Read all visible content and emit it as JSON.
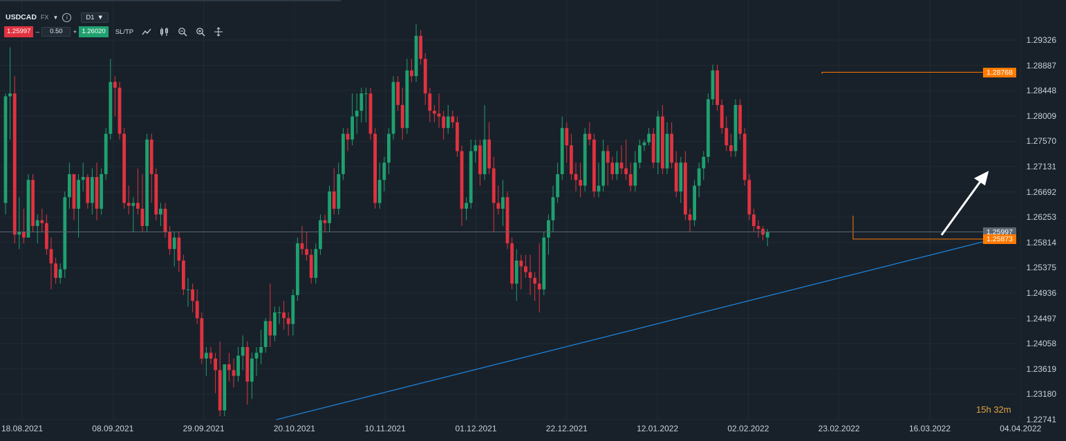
{
  "toolbar": {
    "symbol": "USDCAD",
    "market": "FX",
    "timeframe": "D1",
    "sell_price": "1.25997",
    "quantity": "0.50",
    "buy_price": "1.26020",
    "sltp_label": "SL/TP",
    "minus": "–",
    "plus": "+"
  },
  "price_axis": [
    "1.29326",
    "1.28887",
    "1.28448",
    "1.28009",
    "1.27570",
    "1.27131",
    "1.26692",
    "1.26253",
    "1.25814",
    "1.25375",
    "1.24936",
    "1.24497",
    "1.24058",
    "1.23619",
    "1.23180",
    "1.22741"
  ],
  "date_axis": [
    "18.08.2021",
    "08.09.2021",
    "29.09.2021",
    "20.10.2021",
    "10.11.2021",
    "01.12.2021",
    "22.12.2021",
    "12.01.2022",
    "02.02.2022",
    "23.02.2022",
    "16.03.2022",
    "04.04.2022"
  ],
  "current_price_label": "1.25997",
  "resistance_label": "1.28768",
  "support_label": "1.25873",
  "countdown": {
    "hours": "15h",
    "minutes": "32m"
  },
  "colors": {
    "up": "#1fa06f",
    "down": "#e0323f",
    "trendline": "#1e88e5",
    "level": "#ff7a00",
    "arrow": "#ffffff"
  },
  "chart_data": {
    "type": "candlestick",
    "symbol": "USDCAD",
    "timeframe": "D1",
    "ylim": [
      1.22741,
      1.29326
    ],
    "current_price": 1.25997,
    "levels": [
      1.28768,
      1.25873
    ],
    "trendline": [
      {
        "date": "20.10.2021",
        "price": 1.2274
      },
      {
        "date": "25.03.2022",
        "price": 1.2585
      }
    ],
    "candles": [
      [
        1.265,
        1.284,
        1.263,
        1.2835
      ],
      [
        1.2835,
        1.292,
        1.276,
        1.284
      ],
      [
        1.284,
        1.287,
        1.258,
        1.2595
      ],
      [
        1.2595,
        1.266,
        1.257,
        1.26
      ],
      [
        1.26,
        1.264,
        1.258,
        1.259
      ],
      [
        1.259,
        1.27,
        1.259,
        1.269
      ],
      [
        1.269,
        1.27,
        1.26,
        1.261
      ],
      [
        1.261,
        1.263,
        1.258,
        1.262
      ],
      [
        1.262,
        1.264,
        1.26,
        1.2615
      ],
      [
        1.2615,
        1.263,
        1.256,
        1.257
      ],
      [
        1.257,
        1.259,
        1.25,
        1.2545
      ],
      [
        1.2545,
        1.2555,
        1.251,
        1.252
      ],
      [
        1.252,
        1.2545,
        1.251,
        1.2535
      ],
      [
        1.2535,
        1.267,
        1.252,
        1.266
      ],
      [
        1.266,
        1.272,
        1.264,
        1.27
      ],
      [
        1.27,
        1.27,
        1.262,
        1.264
      ],
      [
        1.264,
        1.27,
        1.259,
        1.269
      ],
      [
        1.269,
        1.272,
        1.267,
        1.2695
      ],
      [
        1.2695,
        1.27,
        1.264,
        1.265
      ],
      [
        1.265,
        1.271,
        1.263,
        1.2695
      ],
      [
        1.2695,
        1.272,
        1.262,
        1.264
      ],
      [
        1.264,
        1.271,
        1.263,
        1.27
      ],
      [
        1.27,
        1.278,
        1.269,
        1.277
      ],
      [
        1.277,
        1.29,
        1.276,
        1.286
      ],
      [
        1.286,
        1.287,
        1.28,
        1.285
      ],
      [
        1.285,
        1.286,
        1.276,
        1.277
      ],
      [
        1.277,
        1.278,
        1.264,
        1.265
      ],
      [
        1.265,
        1.268,
        1.263,
        1.2645
      ],
      [
        1.2645,
        1.266,
        1.26,
        1.265
      ],
      [
        1.265,
        1.271,
        1.263,
        1.264
      ],
      [
        1.264,
        1.27,
        1.26,
        1.261
      ],
      [
        1.261,
        1.277,
        1.26,
        1.276
      ],
      [
        1.276,
        1.277,
        1.265,
        1.27
      ],
      [
        1.27,
        1.271,
        1.262,
        1.263
      ],
      [
        1.263,
        1.265,
        1.261,
        1.264
      ],
      [
        1.264,
        1.265,
        1.259,
        1.26
      ],
      [
        1.26,
        1.261,
        1.256,
        1.257
      ],
      [
        1.257,
        1.26,
        1.254,
        1.259
      ],
      [
        1.259,
        1.26,
        1.253,
        1.255
      ],
      [
        1.255,
        1.256,
        1.249,
        1.25
      ],
      [
        1.25,
        1.252,
        1.247,
        1.25
      ],
      [
        1.25,
        1.251,
        1.246,
        1.248
      ],
      [
        1.248,
        1.25,
        1.244,
        1.245
      ],
      [
        1.245,
        1.246,
        1.237,
        1.238
      ],
      [
        1.238,
        1.24,
        1.235,
        1.239
      ],
      [
        1.239,
        1.24,
        1.237,
        1.238
      ],
      [
        1.238,
        1.239,
        1.232,
        1.236
      ],
      [
        1.236,
        1.241,
        1.228,
        1.229
      ],
      [
        1.229,
        1.237,
        1.228,
        1.237
      ],
      [
        1.237,
        1.239,
        1.234,
        1.236
      ],
      [
        1.236,
        1.238,
        1.233,
        1.235
      ],
      [
        1.235,
        1.24,
        1.234,
        1.2385
      ],
      [
        1.2385,
        1.242,
        1.236,
        1.24
      ],
      [
        1.24,
        1.241,
        1.23,
        1.234
      ],
      [
        1.234,
        1.239,
        1.231,
        1.238
      ],
      [
        1.238,
        1.24,
        1.235,
        1.239
      ],
      [
        1.239,
        1.243,
        1.237,
        1.24
      ],
      [
        1.24,
        1.245,
        1.239,
        1.2445
      ],
      [
        1.2445,
        1.251,
        1.24,
        1.242
      ],
      [
        1.242,
        1.247,
        1.241,
        1.246
      ],
      [
        1.246,
        1.247,
        1.244,
        1.246
      ],
      [
        1.246,
        1.248,
        1.243,
        1.245
      ],
      [
        1.245,
        1.246,
        1.242,
        1.244
      ],
      [
        1.244,
        1.25,
        1.242,
        1.249
      ],
      [
        1.249,
        1.259,
        1.248,
        1.258
      ],
      [
        1.258,
        1.261,
        1.256,
        1.257
      ],
      [
        1.257,
        1.26,
        1.255,
        1.256
      ],
      [
        1.256,
        1.257,
        1.251,
        1.252
      ],
      [
        1.252,
        1.258,
        1.251,
        1.257
      ],
      [
        1.257,
        1.263,
        1.256,
        1.262
      ],
      [
        1.262,
        1.263,
        1.26,
        1.2615
      ],
      [
        1.2615,
        1.268,
        1.26,
        1.267
      ],
      [
        1.267,
        1.271,
        1.263,
        1.264
      ],
      [
        1.264,
        1.272,
        1.263,
        1.27
      ],
      [
        1.27,
        1.278,
        1.269,
        1.277
      ],
      [
        1.277,
        1.278,
        1.274,
        1.276
      ],
      [
        1.276,
        1.284,
        1.275,
        1.28
      ],
      [
        1.28,
        1.284,
        1.277,
        1.281
      ],
      [
        1.281,
        1.285,
        1.279,
        1.284
      ],
      [
        1.284,
        1.285,
        1.279,
        1.284
      ],
      [
        1.284,
        1.285,
        1.276,
        1.277
      ],
      [
        1.277,
        1.278,
        1.264,
        1.265
      ],
      [
        1.265,
        1.272,
        1.264,
        1.269
      ],
      [
        1.269,
        1.273,
        1.267,
        1.272
      ],
      [
        1.272,
        1.278,
        1.27,
        1.277
      ],
      [
        1.277,
        1.287,
        1.276,
        1.286
      ],
      [
        1.286,
        1.287,
        1.281,
        1.282
      ],
      [
        1.282,
        1.285,
        1.276,
        1.278
      ],
      [
        1.278,
        1.29,
        1.277,
        1.288
      ],
      [
        1.288,
        1.29,
        1.286,
        1.287
      ],
      [
        1.287,
        1.296,
        1.286,
        1.294
      ],
      [
        1.294,
        1.295,
        1.289,
        1.29
      ],
      [
        1.29,
        1.291,
        1.282,
        1.284
      ],
      [
        1.284,
        1.285,
        1.279,
        1.281
      ],
      [
        1.281,
        1.282,
        1.279,
        1.2805
      ],
      [
        1.2805,
        1.284,
        1.278,
        1.28
      ],
      [
        1.28,
        1.281,
        1.276,
        1.278
      ],
      [
        1.278,
        1.282,
        1.277,
        1.28
      ],
      [
        1.28,
        1.281,
        1.278,
        1.279
      ],
      [
        1.279,
        1.28,
        1.273,
        1.274
      ],
      [
        1.274,
        1.275,
        1.261,
        1.264
      ],
      [
        1.264,
        1.266,
        1.262,
        1.265
      ],
      [
        1.265,
        1.276,
        1.264,
        1.274
      ],
      [
        1.274,
        1.276,
        1.272,
        1.275
      ],
      [
        1.275,
        1.276,
        1.268,
        1.27
      ],
      [
        1.27,
        1.282,
        1.269,
        1.276
      ],
      [
        1.276,
        1.279,
        1.27,
        1.271
      ],
      [
        1.271,
        1.273,
        1.26,
        1.265
      ],
      [
        1.265,
        1.268,
        1.263,
        1.264
      ],
      [
        1.264,
        1.269,
        1.261,
        1.266
      ],
      [
        1.266,
        1.267,
        1.257,
        1.258
      ],
      [
        1.258,
        1.259,
        1.25,
        1.251
      ],
      [
        1.251,
        1.257,
        1.248,
        1.255
      ],
      [
        1.255,
        1.256,
        1.25,
        1.254
      ],
      [
        1.254,
        1.256,
        1.252,
        1.253
      ],
      [
        1.253,
        1.256,
        1.249,
        1.252
      ],
      [
        1.252,
        1.253,
        1.248,
        1.251
      ],
      [
        1.251,
        1.258,
        1.246,
        1.25
      ],
      [
        1.25,
        1.26,
        1.249,
        1.259
      ],
      [
        1.259,
        1.263,
        1.256,
        1.262
      ],
      [
        1.262,
        1.268,
        1.26,
        1.266
      ],
      [
        1.266,
        1.272,
        1.265,
        1.27
      ],
      [
        1.27,
        1.28,
        1.269,
        1.278
      ],
      [
        1.278,
        1.279,
        1.272,
        1.275
      ],
      [
        1.275,
        1.277,
        1.269,
        1.27
      ],
      [
        1.27,
        1.272,
        1.267,
        1.269
      ],
      [
        1.269,
        1.272,
        1.266,
        1.268
      ],
      [
        1.268,
        1.278,
        1.267,
        1.277
      ],
      [
        1.277,
        1.279,
        1.275,
        1.276
      ],
      [
        1.276,
        1.277,
        1.266,
        1.267
      ],
      [
        1.267,
        1.272,
        1.266,
        1.268
      ],
      [
        1.268,
        1.276,
        1.267,
        1.274
      ],
      [
        1.274,
        1.275,
        1.268,
        1.272
      ],
      [
        1.272,
        1.273,
        1.269,
        1.27
      ],
      [
        1.27,
        1.274,
        1.269,
        1.272
      ],
      [
        1.272,
        1.275,
        1.27,
        1.271
      ],
      [
        1.271,
        1.276,
        1.269,
        1.27
      ],
      [
        1.27,
        1.272,
        1.267,
        1.268
      ],
      [
        1.268,
        1.274,
        1.267,
        1.272
      ],
      [
        1.272,
        1.276,
        1.271,
        1.275
      ],
      [
        1.275,
        1.276,
        1.274,
        1.2755
      ],
      [
        1.2755,
        1.278,
        1.275,
        1.277
      ],
      [
        1.277,
        1.278,
        1.271,
        1.272
      ],
      [
        1.272,
        1.281,
        1.27,
        1.28
      ],
      [
        1.28,
        1.282,
        1.27,
        1.271
      ],
      [
        1.271,
        1.279,
        1.27,
        1.277
      ],
      [
        1.277,
        1.279,
        1.271,
        1.272
      ],
      [
        1.272,
        1.274,
        1.266,
        1.267
      ],
      [
        1.267,
        1.273,
        1.265,
        1.272
      ],
      [
        1.272,
        1.274,
        1.262,
        1.263
      ],
      [
        1.263,
        1.264,
        1.26,
        1.262
      ],
      [
        1.262,
        1.269,
        1.261,
        1.268
      ],
      [
        1.268,
        1.272,
        1.266,
        1.271
      ],
      [
        1.271,
        1.274,
        1.269,
        1.273
      ],
      [
        1.273,
        1.284,
        1.272,
        1.283
      ],
      [
        1.283,
        1.289,
        1.282,
        1.288
      ],
      [
        1.288,
        1.289,
        1.281,
        1.282
      ],
      [
        1.282,
        1.283,
        1.277,
        1.278
      ],
      [
        1.278,
        1.28,
        1.274,
        1.275
      ],
      [
        1.275,
        1.277,
        1.273,
        1.274
      ],
      [
        1.274,
        1.283,
        1.273,
        1.282
      ],
      [
        1.282,
        1.283,
        1.276,
        1.277
      ],
      [
        1.277,
        1.278,
        1.268,
        1.269
      ],
      [
        1.269,
        1.27,
        1.262,
        1.263
      ],
      [
        1.263,
        1.264,
        1.26,
        1.261
      ],
      [
        1.261,
        1.262,
        1.259,
        1.2605
      ],
      [
        1.2605,
        1.261,
        1.2585,
        1.2595
      ],
      [
        1.259,
        1.2605,
        1.2575,
        1.26
      ]
    ]
  }
}
